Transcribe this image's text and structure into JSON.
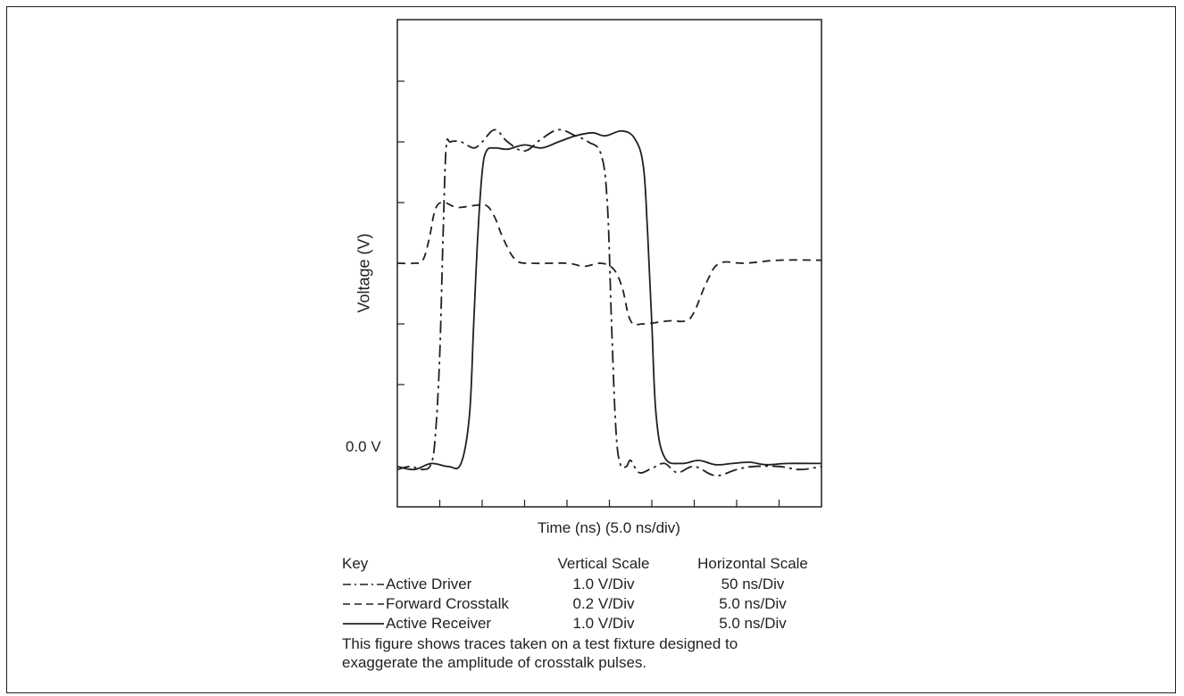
{
  "chart_data": {
    "type": "line",
    "xlabel": "Time  (ns)  (5.0 ns/div)",
    "ylabel": "Voltage  (V)",
    "y_zero_label": "0.0 V",
    "x_divisions": 10,
    "y_divisions": 8,
    "grid": false,
    "series": [
      {
        "name": "Active Driver",
        "style": "dash-dot",
        "points": [
          [
            0,
            -0.4
          ],
          [
            0.3,
            -0.35
          ],
          [
            0.6,
            -0.4
          ],
          [
            0.8,
            -0.3
          ],
          [
            0.9,
            0.2
          ],
          [
            1.0,
            1.5
          ],
          [
            1.08,
            3.5
          ],
          [
            1.15,
            4.9
          ],
          [
            1.25,
            5.0
          ],
          [
            1.5,
            5.0
          ],
          [
            1.8,
            4.9
          ],
          [
            2.0,
            5.0
          ],
          [
            2.3,
            5.2
          ],
          [
            2.6,
            5.0
          ],
          [
            3.0,
            4.85
          ],
          [
            3.4,
            5.05
          ],
          [
            3.8,
            5.2
          ],
          [
            4.2,
            5.1
          ],
          [
            4.5,
            5.0
          ],
          [
            4.8,
            4.8
          ],
          [
            4.95,
            4.0
          ],
          [
            5.05,
            2.0
          ],
          [
            5.15,
            0.3
          ],
          [
            5.25,
            -0.3
          ],
          [
            5.4,
            -0.35
          ],
          [
            5.5,
            -0.25
          ],
          [
            5.7,
            -0.45
          ],
          [
            6.0,
            -0.38
          ],
          [
            6.3,
            -0.3
          ],
          [
            6.6,
            -0.45
          ],
          [
            7.0,
            -0.35
          ],
          [
            7.5,
            -0.5
          ],
          [
            8.0,
            -0.4
          ],
          [
            8.4,
            -0.35
          ],
          [
            9.0,
            -0.35
          ],
          [
            9.5,
            -0.4
          ],
          [
            10.0,
            -0.35
          ]
        ]
      },
      {
        "name": "Forward Crosstalk",
        "style": "dashed",
        "points": [
          [
            0,
            3.0
          ],
          [
            0.4,
            3.0
          ],
          [
            0.6,
            3.05
          ],
          [
            0.75,
            3.4
          ],
          [
            0.9,
            3.9
          ],
          [
            1.1,
            4.0
          ],
          [
            1.4,
            3.92
          ],
          [
            1.8,
            3.95
          ],
          [
            2.1,
            3.95
          ],
          [
            2.3,
            3.75
          ],
          [
            2.5,
            3.4
          ],
          [
            2.8,
            3.05
          ],
          [
            3.2,
            3.0
          ],
          [
            4.0,
            3.0
          ],
          [
            4.4,
            2.95
          ],
          [
            4.8,
            3.0
          ],
          [
            5.1,
            2.9
          ],
          [
            5.3,
            2.6
          ],
          [
            5.5,
            2.05
          ],
          [
            5.8,
            2.0
          ],
          [
            6.4,
            2.05
          ],
          [
            6.8,
            2.05
          ],
          [
            7.0,
            2.2
          ],
          [
            7.3,
            2.7
          ],
          [
            7.6,
            3.0
          ],
          [
            8.2,
            3.0
          ],
          [
            9.0,
            3.05
          ],
          [
            10.0,
            3.05
          ]
        ]
      },
      {
        "name": "Active Receiver",
        "style": "solid",
        "points": [
          [
            0,
            -0.35
          ],
          [
            0.4,
            -0.4
          ],
          [
            0.8,
            -0.3
          ],
          [
            1.2,
            -0.35
          ],
          [
            1.5,
            -0.3
          ],
          [
            1.7,
            0.5
          ],
          [
            1.8,
            2.0
          ],
          [
            1.9,
            3.5
          ],
          [
            2.0,
            4.5
          ],
          [
            2.1,
            4.85
          ],
          [
            2.3,
            4.9
          ],
          [
            2.6,
            4.88
          ],
          [
            3.0,
            4.95
          ],
          [
            3.4,
            4.9
          ],
          [
            3.8,
            5.0
          ],
          [
            4.2,
            5.1
          ],
          [
            4.6,
            5.15
          ],
          [
            4.9,
            5.1
          ],
          [
            5.3,
            5.18
          ],
          [
            5.6,
            5.05
          ],
          [
            5.8,
            4.6
          ],
          [
            5.9,
            3.5
          ],
          [
            6.0,
            2.0
          ],
          [
            6.1,
            0.5
          ],
          [
            6.3,
            -0.2
          ],
          [
            6.7,
            -0.3
          ],
          [
            7.1,
            -0.25
          ],
          [
            7.5,
            -0.32
          ],
          [
            7.9,
            -0.3
          ],
          [
            8.3,
            -0.28
          ],
          [
            8.7,
            -0.32
          ],
          [
            9.2,
            -0.3
          ],
          [
            10.0,
            -0.3
          ]
        ]
      }
    ]
  },
  "key": {
    "title": "Key",
    "vertical_header": "Vertical Scale",
    "horizontal_header": "Horizontal Scale",
    "rows": [
      {
        "name": "Active Driver",
        "vertical": "1.0 V/Div",
        "horizontal": "50 ns/Div"
      },
      {
        "name": "Forward Crosstalk",
        "vertical": "0.2 V/Div",
        "horizontal": "5.0 ns/Div"
      },
      {
        "name": "Active Receiver",
        "vertical": "1.0 V/Div",
        "horizontal": "5.0 ns/Div"
      }
    ]
  },
  "note_line1": "This figure shows traces taken on a test fixture designed to",
  "note_line2": "exaggerate the amplitude of crosstalk pulses."
}
